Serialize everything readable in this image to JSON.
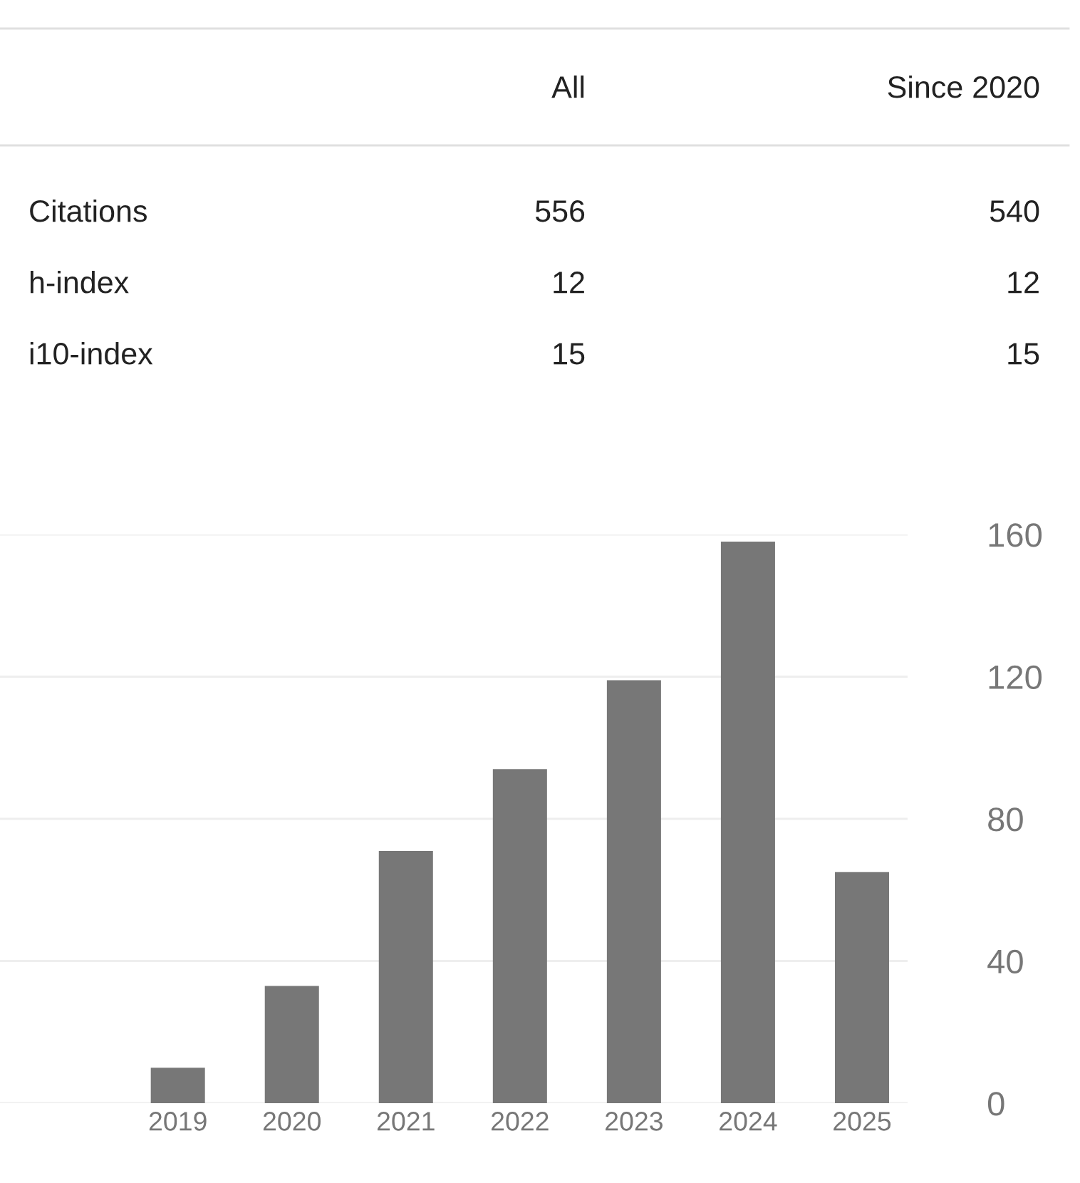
{
  "chart_data": [
    {
      "type": "other",
      "categories": [
        "Citations",
        "h-index",
        "i10-index"
      ],
      "data_labels": true,
      "series": [
        {
          "name": "All",
          "values": [
            556,
            12,
            15
          ]
        },
        {
          "name": "Since 2020",
          "values": [
            540,
            12,
            15
          ]
        }
      ]
    },
    {
      "type": "bar",
      "categories": [
        "2019",
        "2020",
        "2021",
        "2022",
        "2023",
        "2024",
        "2025"
      ],
      "values": [
        10,
        33,
        71,
        94,
        119,
        158,
        65
      ],
      "color": "#777777",
      "ylim": [
        0,
        160
      ],
      "yticks": [
        0,
        40,
        80,
        120,
        160
      ],
      "grid": "y"
    }
  ]
}
